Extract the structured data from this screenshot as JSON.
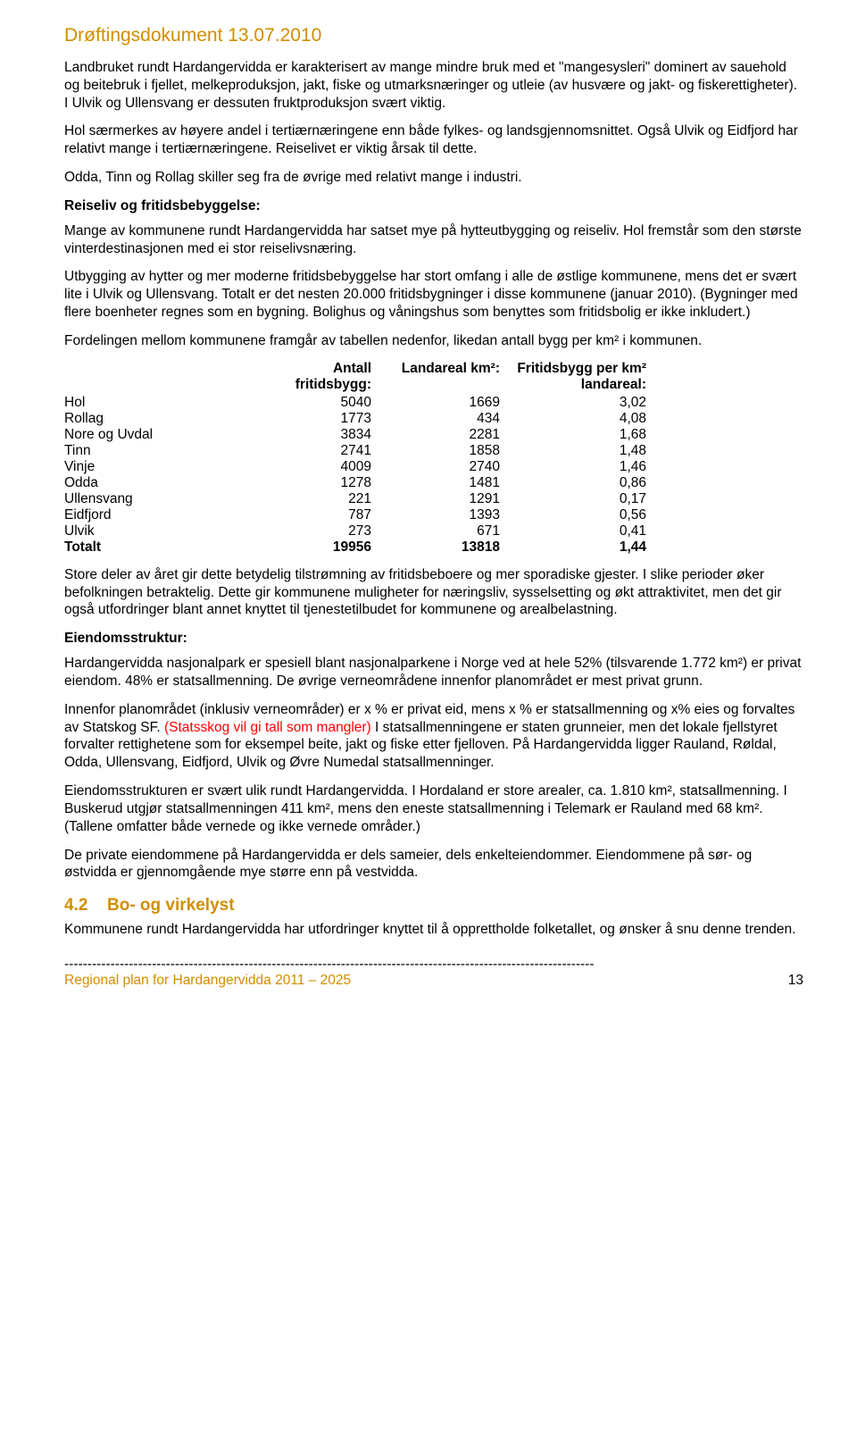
{
  "header": {
    "title": "Drøftingsdokument 13.07.2010"
  },
  "paras": {
    "p1": "Landbruket rundt Hardangervidda er karakterisert av mange mindre bruk med et \"mangesysleri\" dominert av sauehold og beitebruk i fjellet, melkeproduksjon, jakt, fiske og utmarksnæringer og utleie (av husvære og jakt- og fiskerettigheter). I Ulvik og Ullensvang er dessuten fruktproduksjon svært viktig.",
    "p2": "Hol særmerkes av høyere andel i tertiærnæringene enn både fylkes- og landsgjennomsnittet. Også Ulvik og Eidfjord har relativt mange i tertiærnæringene. Reiselivet er viktig årsak til dette.",
    "p3": "Odda, Tinn og Rollag skiller seg fra de øvrige med relativt mange i industri.",
    "sub1": "Reiseliv og fritidsbebyggelse:",
    "p4": "Mange av kommunene rundt Hardangervidda har satset mye på hytteutbygging og reiseliv. Hol fremstår som den største vinterdestinasjonen med ei stor reiselivsnæring.",
    "p5": "Utbygging av hytter og mer moderne fritidsbebyggelse har stort omfang i alle de østlige kommunene, mens det er svært lite i Ulvik og Ullensvang. Totalt er det nesten 20.000 fritidsbygninger i disse kommunene (januar 2010). (Bygninger med flere boenheter regnes som en bygning. Bolighus og våningshus som benyttes som fritidsbolig er ikke inkludert.)",
    "p6": "Fordelingen mellom kommunene framgår av tabellen nedenfor, likedan antall bygg per km² i kommunen.",
    "p7": "Store deler av året gir dette betydelig tilstrømning av fritidsbeboere og mer sporadiske gjester. I slike perioder øker befolkningen betraktelig. Dette gir kommunene muligheter for næringsliv, sysselsetting og økt attraktivitet, men det gir også utfordringer blant annet knyttet til tjenestetilbudet for kommunene og arealbelastning.",
    "sub2": "Eiendomsstruktur:",
    "p8": "Hardangervidda nasjonalpark er spesiell blant nasjonalparkene i Norge ved at hele 52% (tilsvarende 1.772 km²) er privat eiendom. 48% er statsallmenning. De øvrige verneområdene innenfor planområdet er mest privat grunn.",
    "p9a": "Innenfor planområdet (inklusiv verneområder) er x % er privat eid, mens x % er statsallmenning og x% eies og forvaltes av Statskog SF. ",
    "p9red": "(Statsskog vil gi tall som mangler) ",
    "p9b": "I statsallmenningene er staten grunneier, men det lokale fjellstyret forvalter rettighetene som for eksempel beite, jakt og fiske etter fjelloven. På Hardangervidda ligger Rauland, Røldal, Odda, Ullensvang, Eidfjord, Ulvik og Øvre Numedal statsallmenninger.",
    "p10": "Eiendomsstrukturen er svært ulik rundt Hardangervidda. I Hordaland er store arealer, ca. 1.810 km², statsallmenning. I Buskerud utgjør statsallmenningen 411 km², mens den eneste statsallmenning i Telemark er Rauland med 68 km². (Tallene omfatter både vernede og ikke vernede områder.)",
    "p11": "De private eiendommene på Hardangervidda er dels sameier, dels enkelteiendommer. Eiendommene på sør- og østvidda er gjennomgående mye større enn på vestvidda.",
    "p12": "Kommunene rundt Hardangervidda har utfordringer knyttet til å opprettholde folketallet, og ønsker å snu denne trenden."
  },
  "table": {
    "headers": {
      "c1": "Antall fritidsbygg:",
      "c2": "Landareal km²:",
      "c3": "Fritidsbygg per km² landareal:"
    },
    "rows": [
      {
        "label": "Hol",
        "a": "5040",
        "b": "1669",
        "c": "3,02"
      },
      {
        "label": "Rollag",
        "a": "1773",
        "b": "434",
        "c": "4,08"
      },
      {
        "label": "Nore og Uvdal",
        "a": "3834",
        "b": "2281",
        "c": "1,68"
      },
      {
        "label": "Tinn",
        "a": "2741",
        "b": "1858",
        "c": "1,48"
      },
      {
        "label": "Vinje",
        "a": "4009",
        "b": "2740",
        "c": "1,46"
      },
      {
        "label": "Odda",
        "a": "1278",
        "b": "1481",
        "c": "0,86"
      },
      {
        "label": "Ullensvang",
        "a": "221",
        "b": "1291",
        "c": "0,17"
      },
      {
        "label": "Eidfjord",
        "a": "787",
        "b": "1393",
        "c": "0,56"
      },
      {
        "label": "Ulvik",
        "a": "273",
        "b": "671",
        "c": "0,41"
      }
    ],
    "total": {
      "label": "Totalt",
      "a": "19956",
      "b": "13818",
      "c": "1,44"
    }
  },
  "section42": {
    "num": "4.2",
    "title": "Bo- og virkelyst"
  },
  "footer": {
    "dashes": "-------------------------------------------------------------------------------------------------------------------",
    "plan": "Regional plan for Hardangervidda 2011 – 2025",
    "page": "13"
  }
}
